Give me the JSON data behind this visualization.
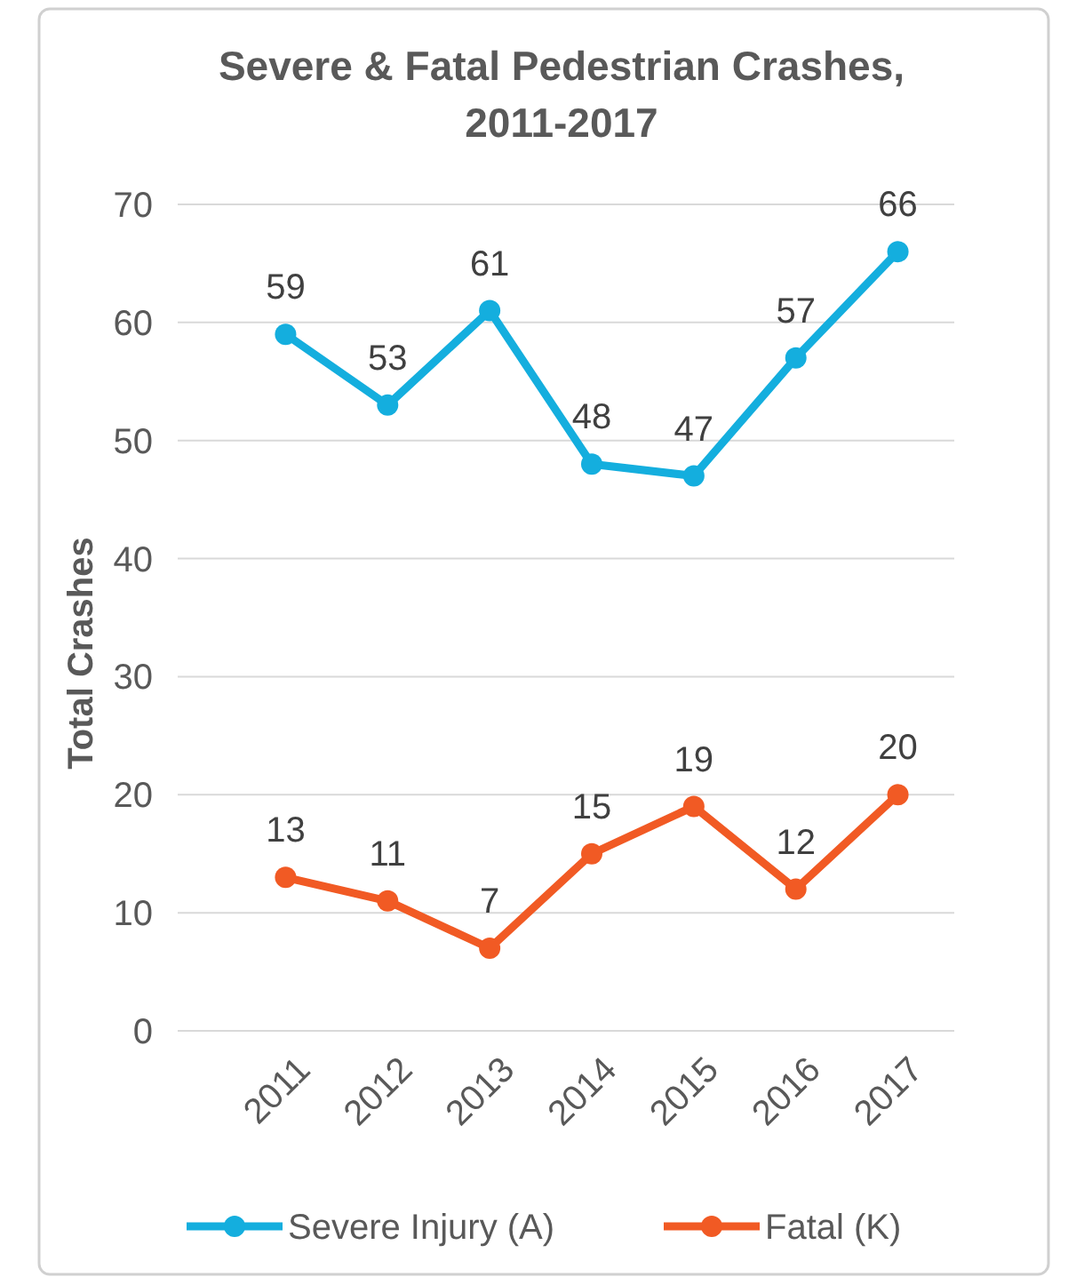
{
  "chart_data": {
    "type": "line",
    "title": "Severe & Fatal Pedestrian Crashes, 2011-2017",
    "ylabel": "Total Crashes",
    "categories": [
      "2011",
      "2012",
      "2013",
      "2014",
      "2015",
      "2016",
      "2017"
    ],
    "series": [
      {
        "name": "Severe Injury (A)",
        "color": "#14aede",
        "values": [
          59,
          53,
          61,
          48,
          47,
          57,
          66
        ]
      },
      {
        "name": "Fatal (K)",
        "color": "#f15a24",
        "values": [
          13,
          11,
          7,
          15,
          19,
          12,
          20
        ]
      }
    ],
    "ylim": [
      0,
      70
    ],
    "yticks": [
      0,
      10,
      20,
      30,
      40,
      50,
      60,
      70
    ],
    "grid": "y",
    "legend": "bottom",
    "marker": "circle",
    "line_style": "solid",
    "data_labels": true
  }
}
